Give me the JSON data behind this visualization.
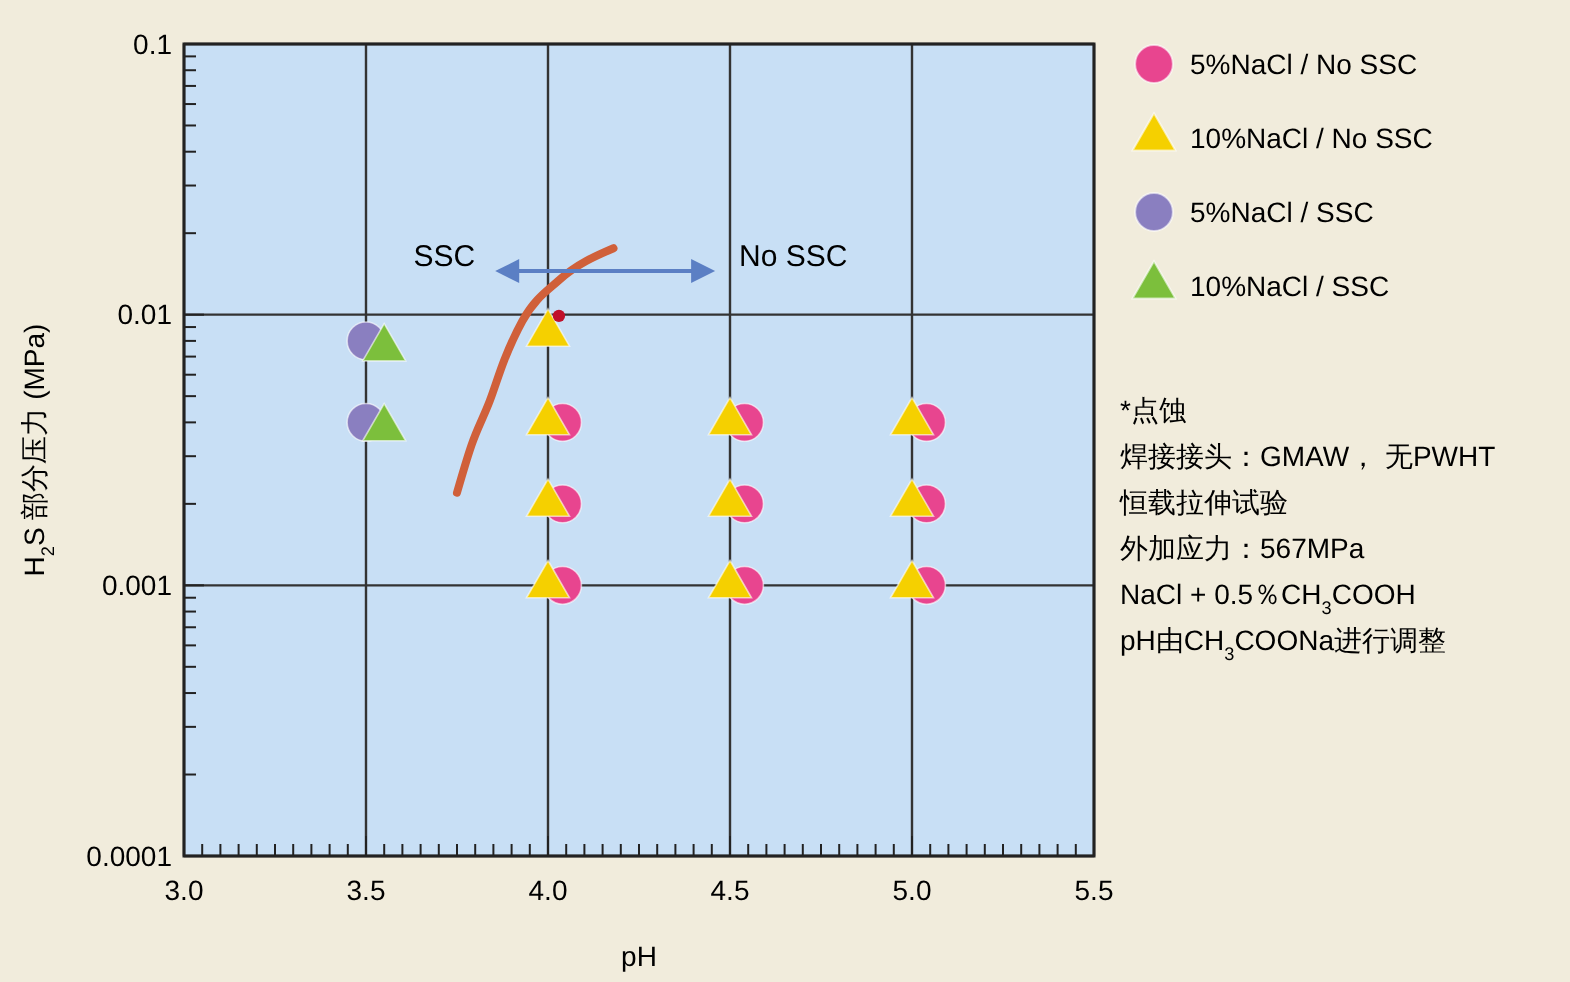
{
  "chart_data": {
    "type": "scatter",
    "xlabel": "pH",
    "ylabel": "H$_{2}$S 部分压力 (MPa)",
    "log": "y",
    "grid": true,
    "legend": "right",
    "xlim": [
      3.0,
      5.5
    ],
    "xticks": [
      {
        "value": 3,
        "label": "3.0"
      },
      {
        "value": 3.5,
        "label": "3.5"
      },
      {
        "value": 4,
        "label": "4.0"
      },
      {
        "value": 4.5,
        "label": "4.5"
      },
      {
        "value": 5,
        "label": "5.0"
      },
      {
        "value": 5.5,
        "label": "5.5"
      }
    ],
    "ylim": [
      0.0001,
      0.1
    ],
    "yticks": [
      0.0001,
      0.001,
      0.01,
      0.1
    ],
    "series": [
      {
        "name": "5%NaCl / No SSC",
        "color": "#e8458f",
        "marker": "circle",
        "x": [
          4.04,
          4.04,
          4.04,
          4.54,
          4.54,
          4.54,
          5.04,
          5.04,
          5.04
        ],
        "values": [
          0.004,
          0.002,
          0.001,
          0.004,
          0.002,
          0.001,
          0.004,
          0.002,
          0.001
        ]
      },
      {
        "name": "10%NaCl / No SSC",
        "color": "#f5d000",
        "marker": "triangle",
        "x": [
          4.0,
          4.0,
          4.0,
          4.0,
          4.5,
          4.5,
          4.5,
          5.0,
          5.0,
          5.0
        ],
        "values": [
          0.0085,
          0.004,
          0.002,
          0.001,
          0.004,
          0.002,
          0.001,
          0.004,
          0.002,
          0.001
        ]
      },
      {
        "name": "5%NaCl / SSC",
        "color": "#8a7fc0",
        "marker": "circle",
        "x": [
          3.5,
          3.5
        ],
        "values": [
          0.008,
          0.004
        ]
      },
      {
        "name": "10%NaCl / SSC",
        "color": "#7cbf3c",
        "marker": "triangle",
        "x": [
          3.55,
          3.55
        ],
        "values": [
          0.0075,
          0.0038
        ]
      },
      {
        "type": "scatter",
        "color": "#c0102a",
        "marker": "circle",
        "x": [
          4.03
        ],
        "values": [
          0.0099
        ]
      },
      {
        "type": "line",
        "color": "#d0603a",
        "x": [
          3.75,
          3.79,
          3.84,
          3.88,
          3.93,
          4.03,
          4.18
        ],
        "values": [
          0.0022,
          0.0033,
          0.0048,
          0.0068,
          0.0095,
          0.0134,
          0.0176
        ]
      }
    ],
    "annotations": [
      "SSC",
      "No SSC",
      "*点蚀",
      "焊接接头：GMAW， 无PWHT",
      "恒载拉伸试验",
      "外加应力：567MPa",
      "NaCl + 0.5％CH$_{3}$COOH",
      "pH由CH$_{3}$COONa进行调整"
    ]
  }
}
